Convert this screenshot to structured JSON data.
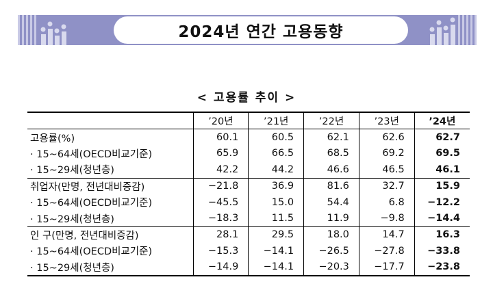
{
  "banner": {
    "title": "2024년 연간 고용동향"
  },
  "subtitle": "< 고용률 추이 >",
  "table": {
    "years": [
      "’20년",
      "’21년",
      "’22년",
      "’23년",
      "’24년"
    ],
    "rows": [
      {
        "label": "고용률(%)",
        "values": [
          "60.1",
          "60.5",
          "62.1",
          "62.6",
          "62.7"
        ]
      },
      {
        "label": "· 15~64세(OECD비교기준)",
        "values": [
          "65.9",
          "66.5",
          "68.5",
          "69.2",
          "69.5"
        ]
      },
      {
        "label": "· 15~29세(청년층)",
        "values": [
          "42.2",
          "44.2",
          "46.6",
          "46.5",
          "46.1"
        ]
      },
      {
        "label": "취업자(만명, 전년대비증감)",
        "values": [
          "−21.8",
          "36.9",
          "81.6",
          "32.7",
          "15.9"
        ]
      },
      {
        "label": "· 15~64세(OECD비교기준)",
        "values": [
          "−45.5",
          "15.0",
          "54.4",
          "6.8",
          "−12.2"
        ]
      },
      {
        "label": "· 15~29세(청년층)",
        "values": [
          "−18.3",
          "11.5",
          "11.9",
          "−9.8",
          "−14.4"
        ]
      },
      {
        "label": "인   구(만명, 전년대비증감)",
        "values": [
          "28.1",
          "29.5",
          "18.0",
          "14.7",
          "16.3"
        ]
      },
      {
        "label": "· 15~64세(OECD비교기준)",
        "values": [
          "−15.3",
          "−14.1",
          "−26.5",
          "−27.8",
          "−33.8"
        ]
      },
      {
        "label": "· 15~29세(청년층)",
        "values": [
          "−14.9",
          "−14.1",
          "−20.3",
          "−17.7",
          "−23.8"
        ]
      }
    ]
  }
}
